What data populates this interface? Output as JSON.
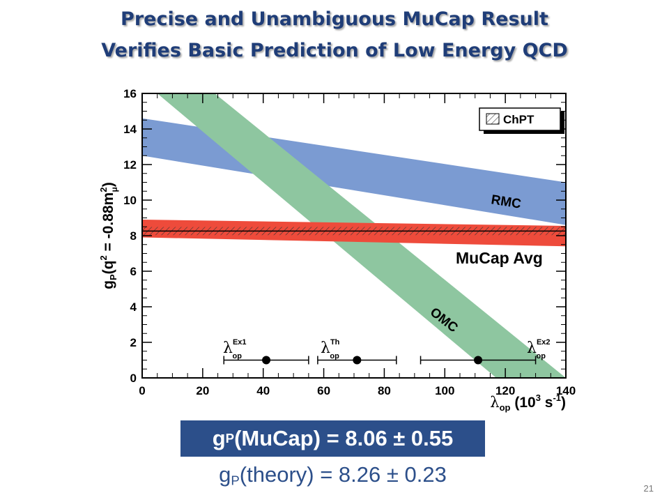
{
  "slide": {
    "title_line1": "Precise and Unambiguous MuCap Result",
    "title_line2": "Verifies Basic Prediction of Low Energy QCD",
    "result": {
      "symbol": "g",
      "subscript": "P",
      "text": "(MuCap) = 8.06 ± 0.55"
    },
    "theory": {
      "symbol": "g",
      "subscript": "P",
      "text": "(theory) = 8.26 ± 0.23"
    },
    "page_number": "21"
  },
  "chart_data": {
    "type": "area",
    "xlim": [
      0,
      140
    ],
    "ylim": [
      0,
      16
    ],
    "x_ticks": [
      0,
      20,
      40,
      60,
      80,
      100,
      120,
      140
    ],
    "y_ticks": [
      0,
      2,
      4,
      6,
      8,
      10,
      12,
      14,
      16
    ],
    "xlabel_main": "λ",
    "xlabel_sub": "op",
    "xlabel_units": " (10",
    "xlabel_exp": "3",
    "xlabel_units2": " s",
    "xlabel_exp2": "-1",
    "xlabel_close": ")",
    "ylabel_main": "g",
    "ylabel_sub": "P",
    "ylabel_text": "(q",
    "ylabel_exp": "2",
    "ylabel_text2": " = -0.88m",
    "ylabel_exp2": "2",
    "ylabel_sub2": "μ",
    "ylabel_close": ")",
    "legend_label": "ChPT",
    "bands": [
      {
        "name": "RMC",
        "color": "#7b9bd2",
        "lower": [
          [
            0,
            12.5
          ],
          [
            140,
            8.6
          ]
        ],
        "upper": [
          [
            0,
            14.6
          ],
          [
            140,
            11.0
          ]
        ]
      },
      {
        "name": "OMC",
        "color": "#8ec6a0",
        "lower": [
          [
            5,
            16
          ],
          [
            117,
            0
          ]
        ],
        "upper": [
          [
            24,
            16
          ],
          [
            140,
            0
          ]
        ]
      },
      {
        "name": "MuCap Avg",
        "color": "#ee4b3b",
        "lower": [
          [
            0,
            7.9
          ],
          [
            140,
            7.4
          ]
        ],
        "upper": [
          [
            0,
            8.9
          ],
          [
            140,
            8.55
          ]
        ]
      }
    ],
    "chpt_band": {
      "y_low": 8.03,
      "y_high": 8.49
    },
    "chpt_line": 8.26,
    "points": [
      {
        "label": "λ",
        "sup": "Ex1",
        "sub": "op",
        "x": 41,
        "y": 1.0,
        "xerr_low": 27,
        "xerr_high": 55
      },
      {
        "label": "λ",
        "sup": "Th",
        "sub": "op",
        "x": 71,
        "y": 1.0,
        "xerr_low": 58,
        "xerr_high": 84
      },
      {
        "label": "λ",
        "sup": "Ex2",
        "sub": "op",
        "x": 111,
        "y": 1.0,
        "xerr_low": 92,
        "xerr_high": 130
      }
    ],
    "band_labels": {
      "rmc": "RMC",
      "mucap": "MuCap Avg",
      "omc": "OMC"
    }
  }
}
